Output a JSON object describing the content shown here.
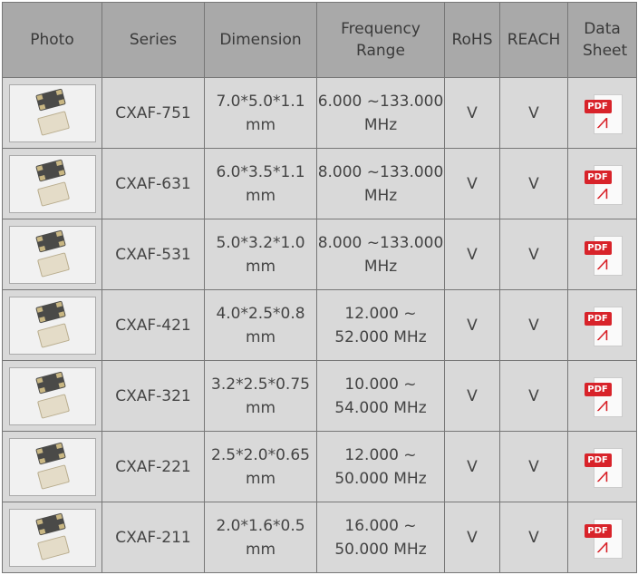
{
  "headers": [
    "Photo",
    "Series",
    "Dimension",
    "Frequency Range",
    "RoHS",
    "REACH",
    "Data Sheet"
  ],
  "pdf_label": "PDF",
  "rows": [
    {
      "series": "CXAF-751",
      "dim1": "7.0*5.0*1.1",
      "dim2": "mm",
      "f1": "6.000 ~133.000",
      "f2": "MHz",
      "rohs": "V",
      "reach": "V"
    },
    {
      "series": "CXAF-631",
      "dim1": "6.0*3.5*1.1",
      "dim2": "mm",
      "f1": "8.000 ~133.000",
      "f2": "MHz",
      "rohs": "V",
      "reach": "V"
    },
    {
      "series": "CXAF-531",
      "dim1": "5.0*3.2*1.0",
      "dim2": "mm",
      "f1": "8.000 ~133.000",
      "f2": "MHz",
      "rohs": "V",
      "reach": "V"
    },
    {
      "series": "CXAF-421",
      "dim1": "4.0*2.5*0.8",
      "dim2": "mm",
      "f1": "12.000 ~",
      "f2": "52.000 MHz",
      "rohs": "V",
      "reach": "V"
    },
    {
      "series": "CXAF-321",
      "dim1": "3.2*2.5*0.75",
      "dim2": "mm",
      "f1": "10.000 ~",
      "f2": "54.000 MHz",
      "rohs": "V",
      "reach": "V"
    },
    {
      "series": "CXAF-221",
      "dim1": "2.5*2.0*0.65",
      "dim2": "mm",
      "f1": "12.000 ~",
      "f2": "50.000 MHz",
      "rohs": "V",
      "reach": "V"
    },
    {
      "series": "CXAF-211",
      "dim1": "2.0*1.6*0.5",
      "dim2": "mm",
      "f1": "16.000 ~",
      "f2": "50.000 MHz",
      "rohs": "V",
      "reach": "V"
    }
  ]
}
